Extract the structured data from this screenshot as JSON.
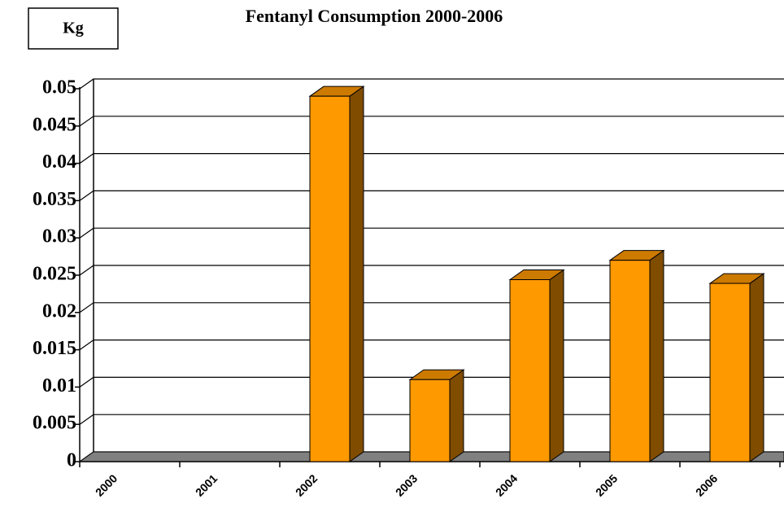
{
  "chart_data": {
    "type": "bar",
    "title": "Fentanyl Consumption 2000-2006",
    "y_label": "Kg",
    "categories": [
      "2000",
      "2001",
      "2002",
      "2003",
      "2004",
      "2005",
      "2006"
    ],
    "values": [
      0,
      0,
      0.049,
      0.011,
      0.0244,
      0.027,
      0.0239
    ],
    "color": "#ff9900",
    "ylim": [
      0,
      0.05
    ],
    "yticks": [
      0,
      0.005,
      0.01,
      0.015,
      0.02,
      0.025,
      0.03,
      0.035,
      0.04,
      0.045,
      0.05
    ],
    "grid": true
  }
}
